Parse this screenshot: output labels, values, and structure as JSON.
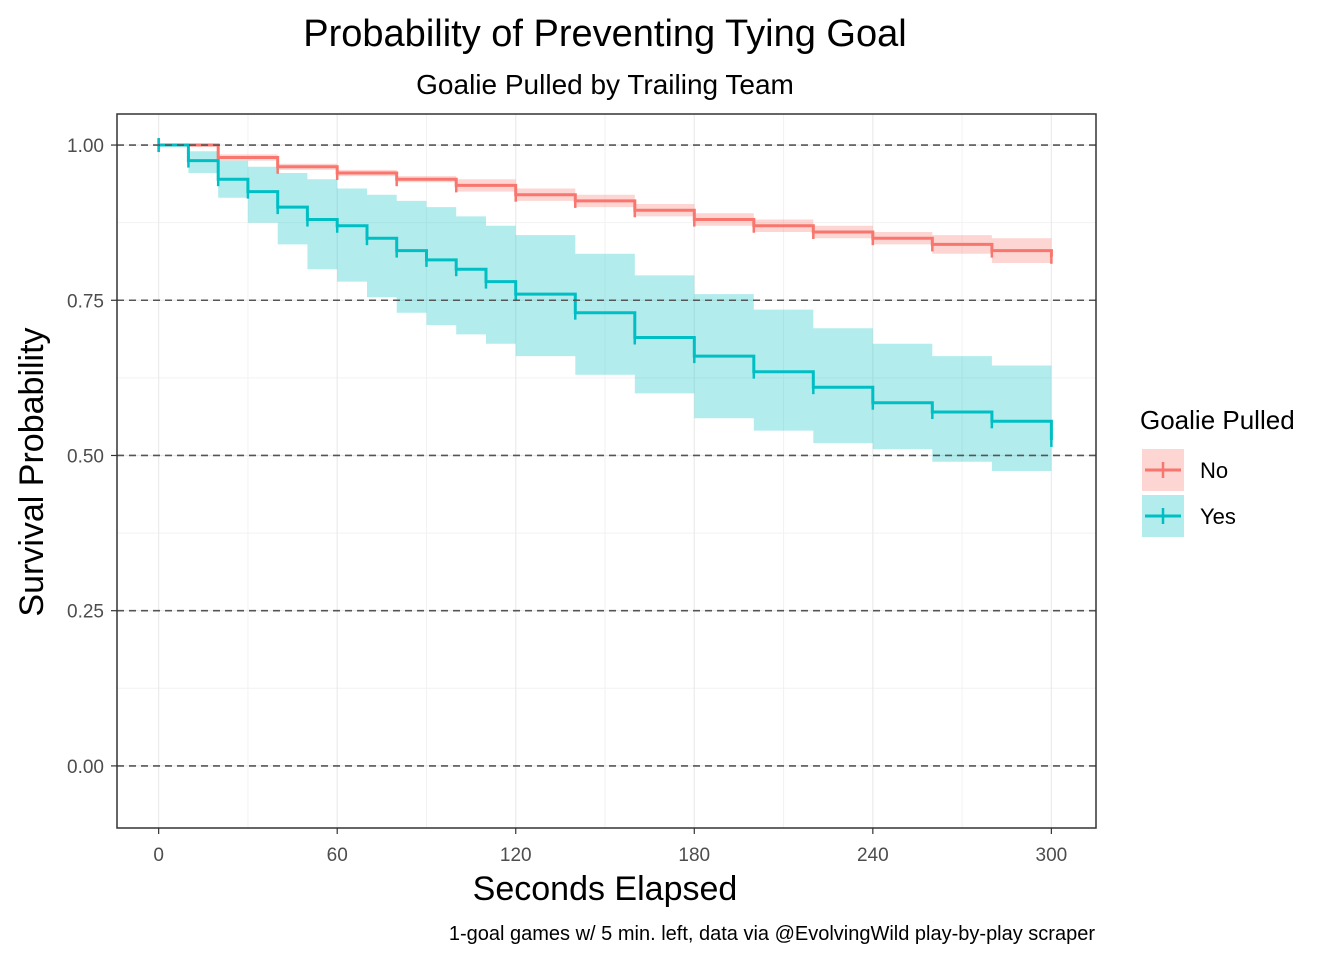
{
  "chart_data": {
    "type": "line",
    "title": "Probability of Preventing Tying Goal",
    "subtitle": "Goalie Pulled by Trailing Team",
    "xlabel": "Seconds Elapsed",
    "ylabel": "Survival Probability",
    "caption": "1-goal games w/ 5 min. left, data via @EvolvingWild play-by-play scraper",
    "xlim": [
      -14,
      315
    ],
    "ylim": [
      -0.1,
      1.05
    ],
    "x_ticks": [
      0,
      60,
      120,
      180,
      240,
      300
    ],
    "x_tick_labels": [
      "0",
      "60",
      "120",
      "180",
      "240",
      "300"
    ],
    "y_ticks": [
      0,
      0.25,
      0.5,
      0.75,
      1.0
    ],
    "y_tick_labels": [
      "0.00",
      "0.25",
      "0.50",
      "0.75",
      "1.00"
    ],
    "reference_lines": [
      0,
      0.25,
      0.5,
      0.75,
      1.0
    ],
    "grid": true,
    "legend": {
      "title": "Goalie Pulled",
      "position": "right",
      "entries": [
        "No",
        "Yes"
      ]
    },
    "series": [
      {
        "name": "No",
        "color": "#F8766D",
        "x": [
          0,
          20,
          40,
          60,
          80,
          100,
          120,
          140,
          160,
          180,
          200,
          220,
          240,
          260,
          280,
          300
        ],
        "y": [
          1.0,
          0.98,
          0.965,
          0.955,
          0.945,
          0.935,
          0.92,
          0.91,
          0.895,
          0.88,
          0.87,
          0.86,
          0.85,
          0.84,
          0.83,
          0.82
        ],
        "lower": [
          1.0,
          0.975,
          0.96,
          0.95,
          0.94,
          0.925,
          0.91,
          0.9,
          0.885,
          0.87,
          0.86,
          0.85,
          0.84,
          0.825,
          0.81,
          0.8
        ],
        "upper": [
          1.0,
          0.985,
          0.97,
          0.96,
          0.95,
          0.945,
          0.93,
          0.92,
          0.905,
          0.89,
          0.88,
          0.87,
          0.86,
          0.855,
          0.85,
          0.84
        ]
      },
      {
        "name": "Yes",
        "color": "#00BFC4",
        "x": [
          0,
          10,
          20,
          30,
          40,
          50,
          60,
          70,
          80,
          90,
          100,
          110,
          120,
          140,
          160,
          180,
          200,
          220,
          240,
          260,
          280,
          300
        ],
        "y": [
          1.0,
          0.975,
          0.945,
          0.925,
          0.9,
          0.88,
          0.87,
          0.85,
          0.83,
          0.815,
          0.8,
          0.78,
          0.76,
          0.73,
          0.69,
          0.66,
          0.635,
          0.61,
          0.585,
          0.57,
          0.555,
          0.525
        ],
        "lower": [
          1.0,
          0.955,
          0.915,
          0.875,
          0.84,
          0.8,
          0.78,
          0.755,
          0.73,
          0.71,
          0.695,
          0.68,
          0.66,
          0.63,
          0.6,
          0.56,
          0.54,
          0.52,
          0.51,
          0.49,
          0.475,
          0.45
        ],
        "upper": [
          1.0,
          0.99,
          0.975,
          0.965,
          0.955,
          0.945,
          0.93,
          0.92,
          0.91,
          0.9,
          0.885,
          0.87,
          0.855,
          0.825,
          0.79,
          0.76,
          0.735,
          0.705,
          0.68,
          0.66,
          0.645,
          0.62
        ]
      }
    ]
  }
}
